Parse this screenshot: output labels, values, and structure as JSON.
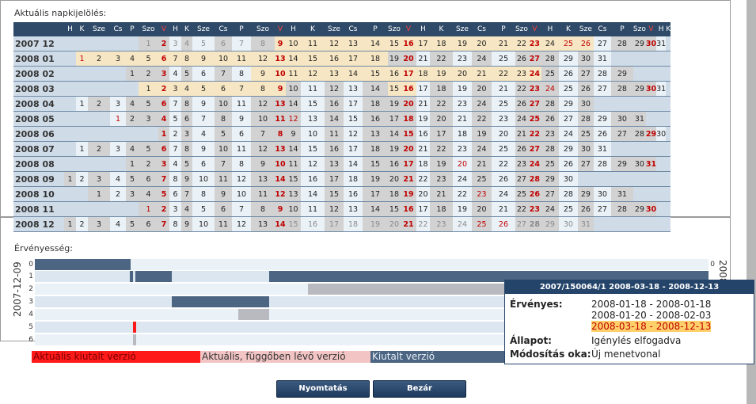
{
  "calendar_section": {
    "legend": "Aktuális napkijelölés:",
    "headers": [
      "H",
      "K",
      "Sze",
      "Cs",
      "P",
      "Szo",
      "V",
      "H",
      "K",
      "Sze",
      "Cs",
      "P",
      "Szo",
      "V",
      "H",
      "K",
      "Sze",
      "Cs",
      "P",
      "Szo",
      "V",
      "H",
      "K",
      "Sze",
      "Cs",
      "P",
      "Szo",
      "V",
      "H",
      "K",
      "Sze",
      "Cs",
      "P",
      "Szo",
      "V",
      "H",
      "K"
    ],
    "months": [
      {
        "label": "2007 12",
        "start": 5,
        "days": 31,
        "red": [
          2,
          9,
          16,
          23,
          25,
          26,
          30
        ],
        "yellow_from": 9,
        "yellow_to": 26,
        "faint_until": 8
      },
      {
        "label": "2008 01",
        "start": 1,
        "days": 31,
        "red": [
          1,
          6,
          13,
          20,
          27
        ],
        "yellow_from": 1,
        "yellow_to": 18
      },
      {
        "label": "2008 02",
        "start": 4,
        "days": 29,
        "red": [
          3,
          10,
          17,
          24
        ],
        "yellow_from": 9,
        "yellow_to": 24,
        "faint_until": 0
      },
      {
        "label": "2008 03",
        "start": 5,
        "days": 31,
        "red": [
          2,
          9,
          16,
          23,
          24,
          30
        ],
        "yellow_from": 1,
        "yellow_to": 9,
        "yellow2_from": 15,
        "yellow2_to": 16
      },
      {
        "label": "2008 04",
        "start": 1,
        "days": 30,
        "red": [
          6,
          13,
          20,
          27
        ]
      },
      {
        "label": "2008 05",
        "start": 3,
        "days": 31,
        "red": [
          1,
          4,
          11,
          12,
          18,
          25
        ]
      },
      {
        "label": "2008 06",
        "start": 6,
        "days": 30,
        "red": [
          1,
          8,
          15,
          22,
          29
        ]
      },
      {
        "label": "2008 07",
        "start": 1,
        "days": 31,
        "red": [
          6,
          13,
          20,
          27
        ]
      },
      {
        "label": "2008 08",
        "start": 4,
        "days": 31,
        "red": [
          3,
          10,
          17,
          20,
          24,
          31
        ]
      },
      {
        "label": "2008 09",
        "start": 0,
        "days": 30,
        "red": [
          7,
          14,
          21,
          28
        ]
      },
      {
        "label": "2008 10",
        "start": 2,
        "days": 31,
        "red": [
          5,
          12,
          19,
          23,
          26
        ]
      },
      {
        "label": "2008 11",
        "start": 5,
        "days": 30,
        "red": [
          1,
          2,
          9,
          16,
          23,
          30
        ]
      },
      {
        "label": "2008 12",
        "start": 0,
        "days": 31,
        "red": [
          7,
          14,
          21,
          25,
          26
        ],
        "faint_from": 15
      }
    ]
  },
  "validity_section": {
    "legend": "Érvényesség:",
    "start_label": "2007-12-09",
    "end_label": "2008-12-13",
    "row_numbers": [
      "0",
      "1",
      "2",
      "3",
      "4",
      "5",
      "6"
    ],
    "right_row_number": "0",
    "legend_items": [
      {
        "label": "Aktuális kiutalt verzió",
        "color": "#ff1a1a"
      },
      {
        "label": "Aktuális, függőben lévő verzió",
        "color": "#f2c4c4"
      },
      {
        "label": "Kiutalt verzió",
        "color": "#4b6582"
      }
    ]
  },
  "tooltip": {
    "title": "2007/150064/1   2008-03-18 - 2008-12-13",
    "valid_label": "Érvényes:",
    "valid_ranges": [
      "2008-01-18 - 2008-01-18",
      "2008-01-20 - 2008-02-03",
      "2008-03-18 - 2008-12-13"
    ],
    "status_label": "Állapot:",
    "status_value": "Igénylés elfogadva",
    "reason_label": "Módosítás oka:",
    "reason_value": "Új menetvonal"
  },
  "buttons": {
    "print": "Nyomtatás",
    "close": "Bezár"
  },
  "colors": {
    "header": "#2e4a68",
    "dark_bar": "#4b6582",
    "light_bar": "#dbe6f0",
    "grey_bar": "#b9b9c0",
    "accent_red": "#ff1a1a"
  }
}
